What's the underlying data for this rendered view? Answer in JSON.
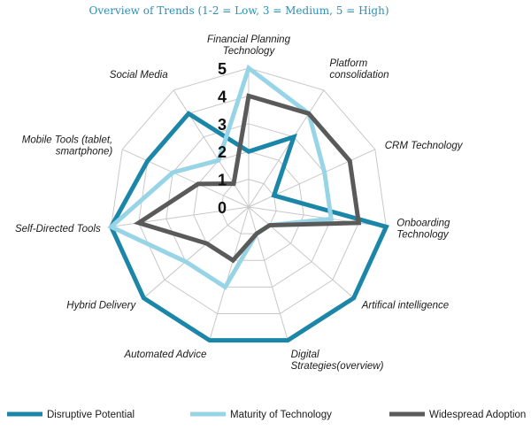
{
  "chart_data": {
    "type": "radar",
    "title": "Overview of Trends (1-2 = Low, 3 = Medium, 5 = High)",
    "categories": [
      [
        "Financial Planning",
        "Technology"
      ],
      [
        "Platform",
        "consolidation"
      ],
      [
        "CRM Technology"
      ],
      [
        "Onboarding",
        "Technology"
      ],
      [
        "Artifical intelligence"
      ],
      [
        "Digital",
        "Strategies(overview)"
      ],
      [
        "Automated Advice"
      ],
      [
        "Hybrid Delivery"
      ],
      [
        "Self-Directed Tools"
      ],
      [
        "Mobile Tools (tablet,",
        "smartphone)"
      ],
      [
        "Social Media"
      ]
    ],
    "ticks": [
      "0",
      "1",
      "2",
      "3",
      "4",
      "5"
    ],
    "rlim": [
      0,
      5
    ],
    "grid": true,
    "legend_position": "bottom",
    "series": [
      {
        "name": "Disruptive Potential",
        "color": "#1b86a8",
        "values": [
          2,
          3,
          1,
          5,
          5,
          5,
          5,
          5,
          5,
          4,
          4
        ]
      },
      {
        "name": "Maturity of Technology",
        "color": "#97d5e6",
        "values": [
          5,
          4,
          3,
          3,
          1,
          1,
          3,
          3,
          5,
          3,
          2
        ]
      },
      {
        "name": "Widespread Adoption",
        "color": "#5a5a5a",
        "values": [
          4,
          4,
          4,
          4,
          1,
          1,
          2,
          2,
          4,
          2,
          1
        ]
      }
    ]
  }
}
